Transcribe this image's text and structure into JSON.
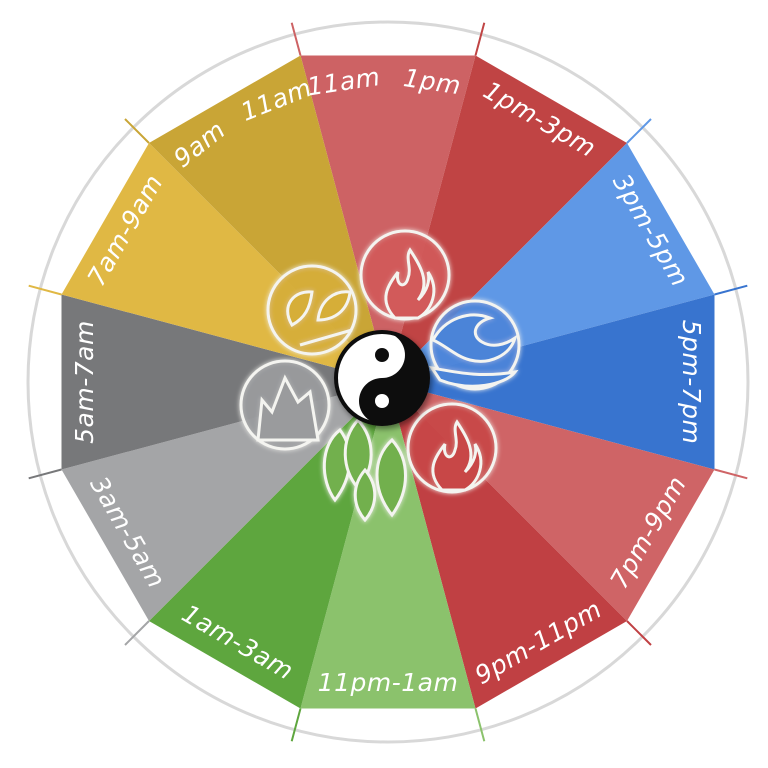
{
  "diagram": {
    "segments": [
      {
        "name": "seg-11am-1pm",
        "label_left": "11am",
        "label_right": "1pm",
        "color": "#CD6264"
      },
      {
        "name": "seg-1pm-3pm",
        "label": "1pm-3pm",
        "color": "#C04444"
      },
      {
        "name": "seg-3pm-5pm",
        "label": "3pm-5pm",
        "color": "#5F98E6"
      },
      {
        "name": "seg-5pm-7pm",
        "label": "5pm-7pm",
        "color": "#3874CF"
      },
      {
        "name": "seg-7pm-9pm",
        "label": "7pm-9pm",
        "color": "#CF6466"
      },
      {
        "name": "seg-9pm-11pm",
        "label": "9pm-11pm",
        "color": "#C04043"
      },
      {
        "name": "seg-11pm-1am",
        "label": "11pm-1am",
        "color": "#8BC26C"
      },
      {
        "name": "seg-1am-3am",
        "label": "1am-3am",
        "color": "#5EA63E"
      },
      {
        "name": "seg-3am-5am",
        "label": "3am-5am",
        "color": "#A4A5A7"
      },
      {
        "name": "seg-5am-7am",
        "label": "5am-7am",
        "color": "#77787A"
      },
      {
        "name": "seg-7am-9am",
        "label": "7am-9am",
        "color": "#E0B844"
      },
      {
        "name": "seg-9am-11am",
        "label_left": "9am",
        "label_right": "11am",
        "color": "#C9A536"
      }
    ],
    "elements": [
      {
        "name": "fire-element-icon",
        "color": "#D25A5A"
      },
      {
        "name": "water-element-icon",
        "color": "#4C84D8"
      },
      {
        "name": "fire-element-icon-2",
        "color": "#C84646"
      },
      {
        "name": "wood-element-icon",
        "color": "#72B04E"
      },
      {
        "name": "metal-element-icon",
        "color": "#9A9B9D"
      },
      {
        "name": "earth-element-icon",
        "color": "#D6AE38"
      }
    ],
    "center_icon": "yin-yang-icon"
  }
}
